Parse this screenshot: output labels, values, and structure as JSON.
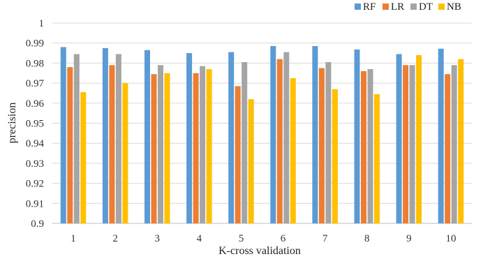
{
  "chart_data": {
    "type": "bar",
    "xlabel": "K-cross validation",
    "ylabel": "precision",
    "ylim": [
      0.9,
      1.0
    ],
    "ytick_step": 0.01,
    "yticks": [
      "0.9",
      "0.91",
      "0.92",
      "0.93",
      "0.94",
      "0.95",
      "0.96",
      "0.97",
      "0.98",
      "0.99",
      "1"
    ],
    "categories": [
      "1",
      "2",
      "3",
      "4",
      "5",
      "6",
      "7",
      "8",
      "9",
      "10"
    ],
    "grid": true,
    "legend_position": "top-right",
    "series": [
      {
        "name": "RF",
        "color": "#5B9BD5",
        "values": [
          0.988,
          0.9875,
          0.9865,
          0.985,
          0.9855,
          0.9885,
          0.9885,
          0.9868,
          0.9845,
          0.9872
        ]
      },
      {
        "name": "LR",
        "color": "#ED7D31",
        "values": [
          0.978,
          0.979,
          0.9745,
          0.975,
          0.9685,
          0.982,
          0.9775,
          0.976,
          0.979,
          0.9745
        ]
      },
      {
        "name": "DT",
        "color": "#A5A5A5",
        "values": [
          0.9845,
          0.9845,
          0.979,
          0.9785,
          0.9805,
          0.9855,
          0.9805,
          0.977,
          0.979,
          0.979
        ]
      },
      {
        "name": "NB",
        "color": "#FFC000",
        "values": [
          0.9655,
          0.97,
          0.975,
          0.977,
          0.962,
          0.9725,
          0.967,
          0.9645,
          0.984,
          0.982
        ]
      }
    ]
  }
}
